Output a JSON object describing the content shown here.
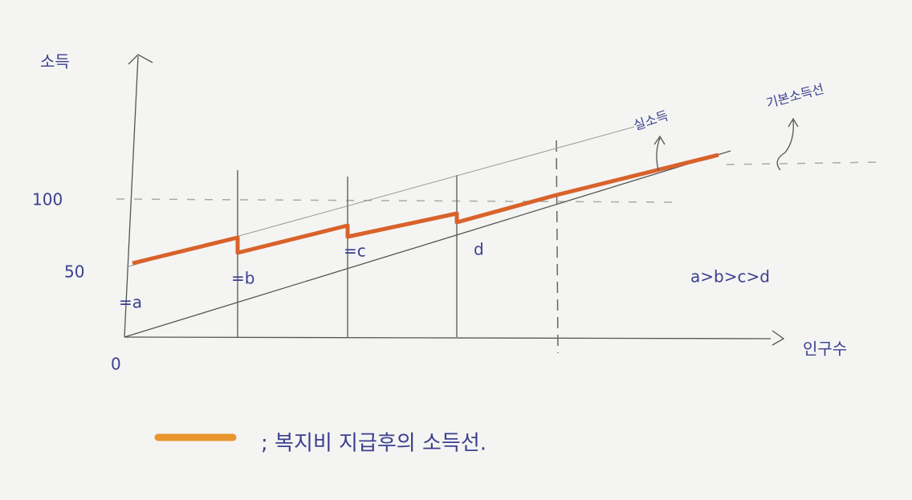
{
  "axes": {
    "y_label": "소득",
    "x_label": "인구수",
    "origin": "0",
    "ticks": [
      "50",
      "100"
    ]
  },
  "annotations": {
    "a": "=a",
    "b": "=b",
    "c": "=c",
    "d": "d",
    "order": "a>b>c>d",
    "real_income": "실소득",
    "basic_income_line": "기본소득선"
  },
  "legend": {
    "label": "; 복지비 지급후의 소득선."
  }
}
